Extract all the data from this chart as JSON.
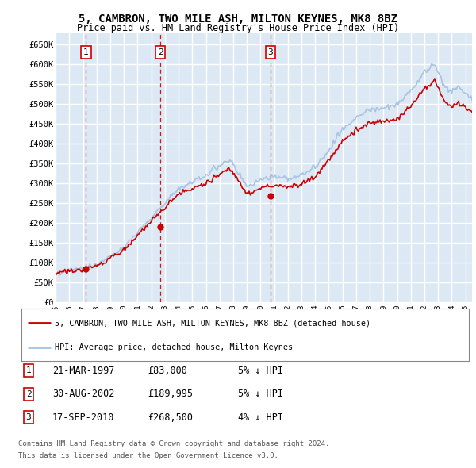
{
  "title": "5, CAMBRON, TWO MILE ASH, MILTON KEYNES, MK8 8BZ",
  "subtitle": "Price paid vs. HM Land Registry's House Price Index (HPI)",
  "xmin": 1995.0,
  "xmax": 2025.5,
  "ymin": 0,
  "ymax": 680000,
  "yticks": [
    0,
    50000,
    100000,
    150000,
    200000,
    250000,
    300000,
    350000,
    400000,
    450000,
    500000,
    550000,
    600000,
    650000
  ],
  "ytick_labels": [
    "£0",
    "£50K",
    "£100K",
    "£150K",
    "£200K",
    "£250K",
    "£300K",
    "£350K",
    "£400K",
    "£450K",
    "£500K",
    "£550K",
    "£600K",
    "£650K"
  ],
  "background_color": "#dce9f5",
  "plot_bg_color": "#dce9f5",
  "grid_color": "#ffffff",
  "sales": [
    {
      "label": "1",
      "date_num": 1997.22,
      "price": 83000
    },
    {
      "label": "2",
      "date_num": 2002.66,
      "price": 189995
    },
    {
      "label": "3",
      "date_num": 2010.72,
      "price": 268500
    }
  ],
  "sale_dates_str": [
    "21-MAR-1997",
    "30-AUG-2002",
    "17-SEP-2010"
  ],
  "sale_prices_str": [
    "£83,000",
    "£189,995",
    "£268,500"
  ],
  "sale_hpi_pct": [
    "5%",
    "5%",
    "4%"
  ],
  "legend_line1": "5, CAMBRON, TWO MILE ASH, MILTON KEYNES, MK8 8BZ (detached house)",
  "legend_line2": "HPI: Average price, detached house, Milton Keynes",
  "footer1": "Contains HM Land Registry data © Crown copyright and database right 2024.",
  "footer2": "This data is licensed under the Open Government Licence v3.0.",
  "hpi_color": "#a8c4e0",
  "price_color": "#cc0000",
  "dashed_line_color": "#cc0000",
  "xtick_years": [
    1995,
    1996,
    1997,
    1998,
    1999,
    2000,
    2001,
    2002,
    2003,
    2004,
    2005,
    2006,
    2007,
    2008,
    2009,
    2010,
    2011,
    2012,
    2013,
    2014,
    2015,
    2016,
    2017,
    2018,
    2019,
    2020,
    2021,
    2022,
    2023,
    2024,
    2025
  ]
}
